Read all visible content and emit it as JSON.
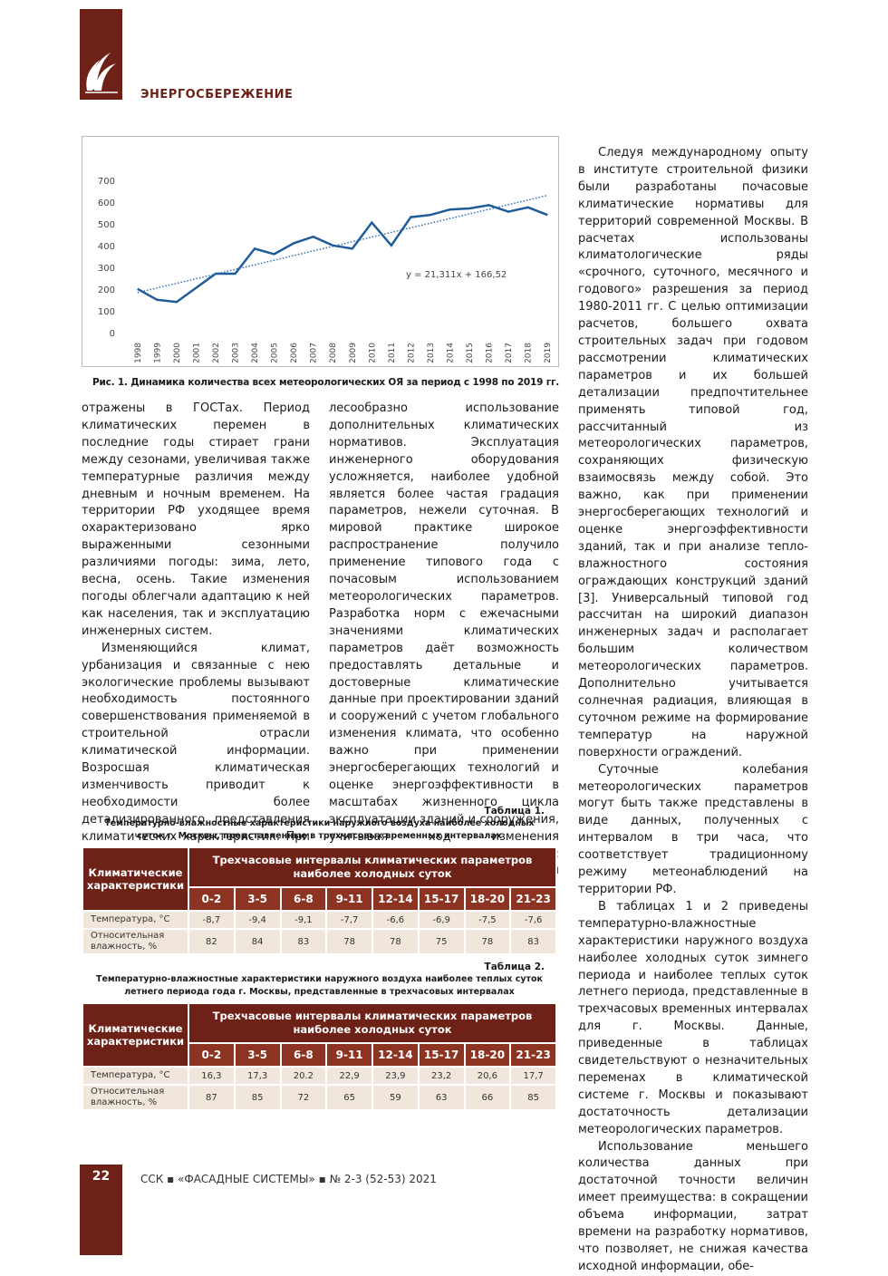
{
  "header": {
    "section": "ЭНЕРГОСБЕРЕЖЕНИЕ"
  },
  "chart_data": {
    "type": "line",
    "categories": [
      "1998",
      "1999",
      "2000",
      "2001",
      "2002",
      "2003",
      "2004",
      "2005",
      "2006",
      "2007",
      "2008",
      "2009",
      "2010",
      "2011",
      "2012",
      "2013",
      "2014",
      "2015",
      "2016",
      "2017",
      "2018",
      "2019"
    ],
    "values": [
      205,
      155,
      145,
      210,
      275,
      275,
      390,
      365,
      415,
      445,
      405,
      390,
      510,
      405,
      535,
      545,
      570,
      575,
      590,
      560,
      580,
      545
    ],
    "color": "#1f5c99",
    "trend": {
      "values": [
        188,
        635
      ],
      "color": "#2e6db4",
      "style": "dotted"
    },
    "annotation": "y = 21,311x + 166,52",
    "ylim": [
      0,
      700
    ],
    "yticks": [
      0,
      100,
      200,
      300,
      400,
      500,
      600,
      700
    ],
    "grid": false
  },
  "figure_caption": "Рис. 1. Динамика количества всех метеорологических ОЯ за период с 1998 по 2019 гг.",
  "columns": {
    "left": [
      "отражены в ГОСТах. Период климатических перемен в последние годы стирает грани между сезонами, увеличивая также температурные различия между дневным и ночным временем. На территории РФ уходящее время охарактеризовано ярко выраженными сезонными различиями погоды: зима, лето, весна, осень. Такие изменения погоды облегчали адаптацию к ней как населения, так и эксплуатацию инженерных систем.",
      "Изменяющийся климат, урбанизация и связанные с нею экологические проблемы вызывают необходимость постоянного совершенствования применяемой в строительной отрасли климатической информации. Возросшая климатическая изменчивость приводит к необходимости более детализированного представления климатических характеристик. При эксплуатации систем обеспечения микроклимата зданий це-"
    ],
    "middle": [
      "лесообразно использование дополнительных климатических нормативов. Эксплуатация инженерного оборудования усложняется, наиболее удобной является более частая градация параметров, нежели суточная. В мировой практике широкое распространение получило применение типового года с почасовым использованием метеорологических параметров. Разработка норм с ежечасными значениями климатических параметров даёт возможность предоставлять детальные и достоверные климатические данные при проектировании зданий и сооружений с учетом глобального изменения климата, что особенно важно при применении энергосберегающих технологий и оценке энергоэффективности в масштабах жизненного цикла эксплуатации зданий и сооружения, учитывая ход изменения климатических параметров: годовой, месячный, суточный и почасовой."
    ],
    "right": [
      "Следуя международному опыту в институте строительной физики были разработаны почасовые климатические нормативы для территорий современной Москвы. В расчетах использованы климатологические ряды «срочного, суточного, месячного и годового» разрешения за период 1980-2011 гг. С целью оптимизации расчетов, большего охвата строительных задач при годовом рассмотрении климатических параметров и их большей детализации предпочтительнее применять типовой год, рассчитанный из метеорологических параметров, сохраняющих физическую взаимосвязь между собой. Это важно, как при применении энергосберегающих технологий и оценке энергоэффективности зданий, так и при анализе тепло-влажностного состояния ограждающих конструкций зданий [3]. Универсальный типовой год рассчитан на широкий диапазон инженерных задач и располагает большим количеством метеорологических параметров. Дополнительно учитывается солнечная радиация, влияющая в суточном режиме на формирование температур на наружной поверхности ограждений.",
      "Суточные колебания метеорологических параметров могут быть также представлены в виде данных, полученных с интервалом в три часа, что соответствует традиционному режиму метеонаблюдений на территории РФ.",
      "В таблицах 1 и 2 приведены температурно-влажностные характеристики наружного воздуха наиболее холодных суток зимнего периода и наиболее теплых суток летнего периода, представленные в трехчасовых временных интервалах для г. Москвы. Данные, приведенные в таблицах свидетельствуют о незначительных переменах в климатической системе г. Москвы и показывают достаточность детализации метеорологических параметров.",
      "Использование меньшего количества данных при достаточной точности величин имеет преимущества: в сокращении объема информации, затрат времени на разработку нормативов, что позволяет, не снижая качества исходной информации, обе-"
    ]
  },
  "tables": [
    {
      "label": "Таблица 1.",
      "title": "Температурно-влажностные характеристики наружного воздуха наиболее холодных суток г. Москвы, представленные в трехчасовых временных интервалах",
      "row_header": "Климатические характеристики",
      "span_header": "Трехчасовые интервалы климатических параметров наиболее холодных суток",
      "intervals": [
        "0-2",
        "3-5",
        "6-8",
        "9-11",
        "12-14",
        "15-17",
        "18-20",
        "21-23"
      ],
      "rows": [
        {
          "label": "Температура, °С",
          "cells": [
            "-8,7",
            "-9,4",
            "-9,1",
            "-7,7",
            "-6,6",
            "-6,9",
            "-7,5",
            "-7,6"
          ]
        },
        {
          "label": "Относительная влажность, %",
          "cells": [
            "82",
            "84",
            "83",
            "78",
            "78",
            "75",
            "78",
            "83"
          ]
        }
      ]
    },
    {
      "label": "Таблица 2.",
      "title": "Температурно-влажностные характеристики наружного воздуха наиболее теплых суток летнего периода года г. Москвы, представленные в трехчасовых интервалах",
      "row_header": "Климатические характеристики",
      "span_header": "Трехчасовые интервалы климатических параметров наиболее холодных суток",
      "intervals": [
        "0-2",
        "3-5",
        "6-8",
        "9-11",
        "12-14",
        "15-17",
        "18-20",
        "21-23"
      ],
      "rows": [
        {
          "label": "Температура, °С",
          "cells": [
            "16,3",
            "17,3",
            "20.2",
            "22,9",
            "23,9",
            "23,2",
            "20,6",
            "17,7"
          ]
        },
        {
          "label": "Относительная влажность, %",
          "cells": [
            "87",
            "85",
            "72",
            "65",
            "59",
            "63",
            "66",
            "85"
          ]
        }
      ]
    }
  ],
  "footer": {
    "page": "22",
    "publication": "ССК ▪ «ФАСАДНЫЕ СИСТЕМЫ» ▪ № 2-3 (52-53) 2021"
  }
}
